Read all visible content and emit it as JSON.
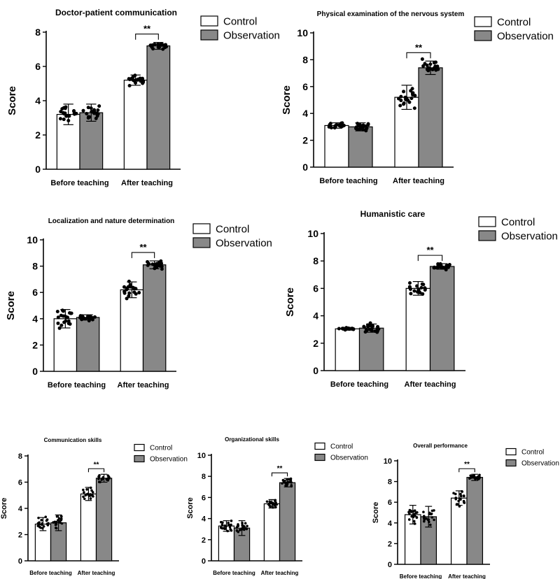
{
  "figure": {
    "panels": [
      {
        "title": "Doctor-patient communication",
        "legend": [
          "Control",
          "Observation"
        ]
      },
      {
        "title": "Physical examination of the nervous system",
        "legend": [
          "Control",
          "Observation"
        ]
      },
      {
        "title": "Localization and nature determination",
        "legend": [
          "Control",
          "Observation"
        ]
      },
      {
        "title": "Humanistic care",
        "legend": [
          "Control",
          "Observation"
        ]
      },
      {
        "title": "Communication skills",
        "legend": [
          "Control",
          "Observation"
        ]
      },
      {
        "title": "Organizational skills",
        "legend": [
          "Control",
          "Observation"
        ]
      },
      {
        "title": "Overall performance",
        "legend": [
          "Control",
          "Observation"
        ]
      }
    ]
  },
  "chart_data": [
    {
      "type": "bar",
      "title": "Doctor-patient communication",
      "ylabel": "Score",
      "xlabel": "",
      "ylim": [
        0,
        8
      ],
      "yticks": [
        0,
        2,
        4,
        6,
        8
      ],
      "categories": [
        "Before teaching",
        "After teaching"
      ],
      "series": [
        {
          "name": "Control",
          "values": [
            3.2,
            5.2
          ],
          "sd": [
            0.6,
            0.3
          ],
          "color": "#ffffff"
        },
        {
          "name": "Observation",
          "values": [
            3.3,
            7.2
          ],
          "sd": [
            0.5,
            0.2
          ],
          "color": "#888888"
        }
      ],
      "significance": [
        {
          "category": "After teaching",
          "label": "**"
        }
      ],
      "legend_position": "top-right"
    },
    {
      "type": "bar",
      "title": "Physical examination of the nervous system",
      "ylabel": "Score",
      "xlabel": "",
      "ylim": [
        0,
        10
      ],
      "yticks": [
        0,
        2,
        4,
        6,
        8,
        10
      ],
      "categories": [
        "Before teaching",
        "After teaching"
      ],
      "series": [
        {
          "name": "Control",
          "values": [
            3.1,
            5.2
          ],
          "sd": [
            0.2,
            0.9
          ],
          "color": "#ffffff"
        },
        {
          "name": "Observation",
          "values": [
            3.0,
            7.4
          ],
          "sd": [
            0.3,
            0.5
          ],
          "color": "#888888"
        }
      ],
      "significance": [
        {
          "category": "After teaching",
          "label": "**"
        }
      ],
      "legend_position": "top-right"
    },
    {
      "type": "bar",
      "title": "Localization and nature determination",
      "ylabel": "Score",
      "xlabel": "",
      "ylim": [
        0,
        10
      ],
      "yticks": [
        0,
        2,
        4,
        6,
        8,
        10
      ],
      "categories": [
        "Before teaching",
        "After teaching"
      ],
      "series": [
        {
          "name": "Control",
          "values": [
            4.0,
            6.2
          ],
          "sd": [
            0.7,
            0.6
          ],
          "color": "#ffffff"
        },
        {
          "name": "Observation",
          "values": [
            4.1,
            8.1
          ],
          "sd": [
            0.2,
            0.3
          ],
          "color": "#888888"
        }
      ],
      "significance": [
        {
          "category": "After teaching",
          "label": "**"
        }
      ],
      "legend_position": "top-right"
    },
    {
      "type": "bar",
      "title": "Humanistic care",
      "ylabel": "Score",
      "xlabel": "",
      "ylim": [
        0,
        10
      ],
      "yticks": [
        0,
        2,
        4,
        6,
        8,
        10
      ],
      "categories": [
        "Before teaching",
        "After teaching"
      ],
      "series": [
        {
          "name": "Control",
          "values": [
            3.05,
            6.0
          ],
          "sd": [
            0.1,
            0.5
          ],
          "color": "#ffffff"
        },
        {
          "name": "Observation",
          "values": [
            3.1,
            7.6
          ],
          "sd": [
            0.3,
            0.2
          ],
          "color": "#888888"
        }
      ],
      "significance": [
        {
          "category": "After teaching",
          "label": "**"
        }
      ],
      "legend_position": "top-right"
    },
    {
      "type": "bar",
      "title": "Communication skills",
      "ylabel": "Score",
      "xlabel": "",
      "ylim": [
        0,
        8
      ],
      "yticks": [
        0,
        2,
        4,
        6,
        8
      ],
      "categories": [
        "Before teaching",
        "After teaching"
      ],
      "series": [
        {
          "name": "Control",
          "values": [
            2.8,
            5.1
          ],
          "sd": [
            0.5,
            0.5
          ],
          "color": "#ffffff"
        },
        {
          "name": "Observation",
          "values": [
            2.9,
            6.3
          ],
          "sd": [
            0.6,
            0.3
          ],
          "color": "#888888"
        }
      ],
      "significance": [
        {
          "category": "After teaching",
          "label": "**"
        }
      ],
      "legend_position": "top-right"
    },
    {
      "type": "bar",
      "title": "Organizational skills",
      "ylabel": "Score",
      "xlabel": "",
      "ylim": [
        0,
        10
      ],
      "yticks": [
        0,
        2,
        4,
        6,
        8,
        10
      ],
      "categories": [
        "Before teaching",
        "After teaching"
      ],
      "series": [
        {
          "name": "Control",
          "values": [
            3.3,
            5.4
          ],
          "sd": [
            0.5,
            0.4
          ],
          "color": "#ffffff"
        },
        {
          "name": "Observation",
          "values": [
            3.1,
            7.4
          ],
          "sd": [
            0.7,
            0.4
          ],
          "color": "#888888"
        }
      ],
      "significance": [
        {
          "category": "After teaching",
          "label": "**"
        }
      ],
      "legend_position": "top-right"
    },
    {
      "type": "bar",
      "title": "Overall performance",
      "ylabel": "Score",
      "xlabel": "",
      "ylim": [
        0,
        10
      ],
      "yticks": [
        0,
        2,
        4,
        6,
        8,
        10
      ],
      "categories": [
        "Before teaching",
        "After teaching"
      ],
      "series": [
        {
          "name": "Control",
          "values": [
            4.8,
            6.4
          ],
          "sd": [
            0.9,
            0.7
          ],
          "color": "#ffffff"
        },
        {
          "name": "Observation",
          "values": [
            4.6,
            8.4
          ],
          "sd": [
            1.0,
            0.3
          ],
          "color": "#888888"
        }
      ],
      "significance": [
        {
          "category": "After teaching",
          "label": "**"
        }
      ],
      "legend_position": "top-right"
    }
  ]
}
